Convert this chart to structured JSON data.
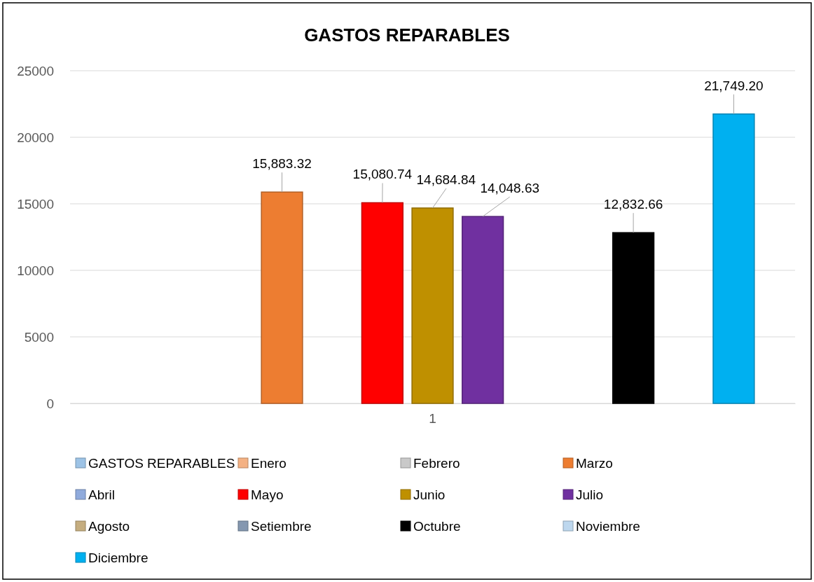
{
  "chart_data": {
    "type": "bar",
    "title": "GASTOS REPARABLES",
    "categories": [
      "1"
    ],
    "series": [
      {
        "name": "GASTOS REPARABLES",
        "color": "#9dc3e6",
        "values": [
          null
        ]
      },
      {
        "name": "Enero",
        "color": "#f4b183",
        "values": [
          null
        ]
      },
      {
        "name": "Febrero",
        "color": "#c9c9c9",
        "values": [
          null
        ]
      },
      {
        "name": "Marzo",
        "color": "#ed7d31",
        "values": [
          15883.32
        ],
        "value_labels": [
          "15,883.32"
        ]
      },
      {
        "name": "Abril",
        "color": "#8faadc",
        "values": [
          null
        ]
      },
      {
        "name": "Mayo",
        "color": "#ff0000",
        "values": [
          15080.74
        ],
        "value_labels": [
          "15,080.74"
        ]
      },
      {
        "name": "Junio",
        "color": "#bf9000",
        "values": [
          14684.84
        ],
        "value_labels": [
          "14,684.84"
        ]
      },
      {
        "name": "Julio",
        "color": "#7030a0",
        "values": [
          14048.63
        ],
        "value_labels": [
          "14,048.63"
        ]
      },
      {
        "name": "Agosto",
        "color": "#c5ad7f",
        "values": [
          null
        ]
      },
      {
        "name": "Setiembre",
        "color": "#8497b0",
        "values": [
          null
        ]
      },
      {
        "name": "Octubre",
        "color": "#000000",
        "values": [
          12832.66
        ],
        "value_labels": [
          "12,832.66"
        ]
      },
      {
        "name": "Noviembre",
        "color": "#bdd7ee",
        "values": [
          null
        ]
      },
      {
        "name": "Diciembre",
        "color": "#00b0f0",
        "values": [
          21749.2
        ],
        "value_labels": [
          "21,749.20"
        ]
      }
    ],
    "ylim": [
      0,
      25000
    ],
    "yticks": [
      0,
      5000,
      10000,
      15000,
      20000,
      25000
    ],
    "grid": "y",
    "legend": "bottom"
  }
}
